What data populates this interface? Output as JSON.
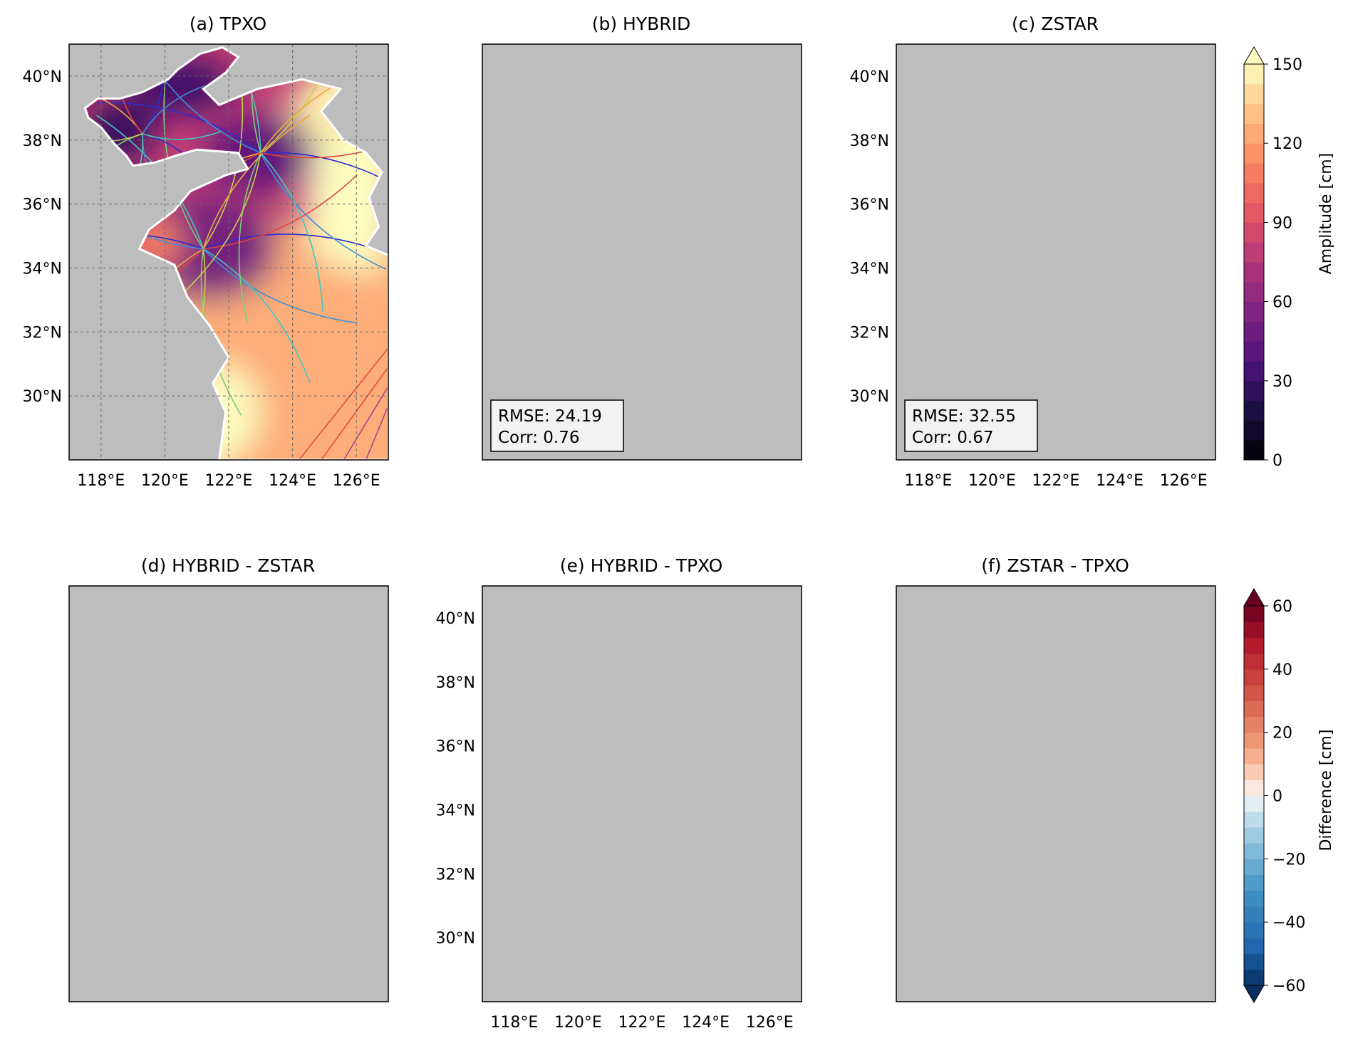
{
  "panels": [
    {
      "id": "a",
      "title": "(a) TPXO",
      "field": "amp",
      "variant": "tpxo"
    },
    {
      "id": "b",
      "title": "(b) HYBRID",
      "field": "amp",
      "variant": "hybrid",
      "rmse": "RMSE: 24.19",
      "corr": "Corr: 0.76"
    },
    {
      "id": "c",
      "title": "(c) ZSTAR",
      "field": "amp",
      "variant": "zstar",
      "rmse": "RMSE: 32.55",
      "corr": "Corr: 0.67"
    },
    {
      "id": "d",
      "title": "(d) HYBRID - ZSTAR",
      "field": "diff",
      "variant": "hz"
    },
    {
      "id": "e",
      "title": "(e) HYBRID - TPXO",
      "field": "diff",
      "variant": "ht"
    },
    {
      "id": "f",
      "title": "(f) ZSTAR - TPXO",
      "field": "diff",
      "variant": "zt"
    }
  ],
  "axes": {
    "lon_range": [
      117,
      127
    ],
    "lat_range": [
      28,
      41
    ],
    "lon_ticks": [
      118,
      120,
      122,
      124,
      126
    ],
    "lat_ticks": [
      30,
      32,
      34,
      36,
      38,
      40
    ],
    "lon_tick_labels": [
      "118°E",
      "120°E",
      "122°E",
      "124°E",
      "126°E"
    ],
    "lat_tick_labels": [
      "30°N",
      "32°N",
      "34°N",
      "36°N",
      "38°N",
      "40°N"
    ],
    "grid": "dashed"
  },
  "colorbars": {
    "amplitude": {
      "label": "Amplitude [cm]",
      "range": [
        0,
        150
      ],
      "ticks": [
        0,
        30,
        60,
        90,
        120,
        150
      ],
      "tick_labels": [
        "0",
        "30",
        "60",
        "90",
        "120",
        "150"
      ],
      "colormap": "magma",
      "extend": "max"
    },
    "difference": {
      "label": "Difference [cm]",
      "range": [
        -60,
        60
      ],
      "ticks": [
        -60,
        -40,
        -20,
        0,
        20,
        40,
        60
      ],
      "tick_labels": [
        "−60",
        "−40",
        "−20",
        "0",
        "20",
        "40",
        "60"
      ],
      "colormap": "RdBu_r",
      "extend": "both"
    }
  },
  "colors": {
    "land": "#bdbdbd",
    "coast": "#ffffff",
    "grid": "#666666"
  }
}
